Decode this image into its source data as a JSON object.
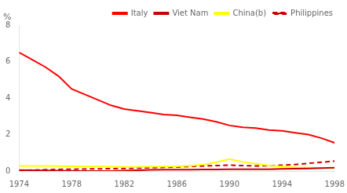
{
  "chart_data": {
    "type": "line",
    "ylabel": "%",
    "x": [
      1974,
      1975,
      1976,
      1977,
      1978,
      1979,
      1980,
      1981,
      1982,
      1983,
      1984,
      1985,
      1986,
      1987,
      1988,
      1989,
      1990,
      1991,
      1992,
      1993,
      1994,
      1995,
      1996,
      1997,
      1998
    ],
    "series": [
      {
        "name": "Italy",
        "color": "#ff0000",
        "line_style": "solid",
        "values": [
          6.5,
          6.1,
          5.7,
          5.2,
          4.5,
          4.2,
          3.9,
          3.6,
          3.4,
          3.3,
          3.2,
          3.1,
          3.05,
          2.95,
          2.85,
          2.7,
          2.5,
          2.4,
          2.35,
          2.25,
          2.2,
          2.1,
          2.0,
          1.8,
          1.55
        ]
      },
      {
        "name": "Viet Nam",
        "color": "#cc0000",
        "line_style": "solid",
        "values": [
          0.05,
          0.04,
          0.03,
          0.02,
          0.01,
          0.0,
          0.0,
          0.0,
          0.02,
          0.04,
          0.06,
          0.07,
          0.08,
          0.08,
          0.09,
          0.09,
          0.1,
          0.1,
          0.1,
          0.1,
          0.12,
          0.13,
          0.14,
          0.16,
          0.18
        ]
      },
      {
        "name": "China(b)",
        "color": "#ffff00",
        "line_style": "solid",
        "values": [
          0.28,
          0.28,
          0.28,
          0.27,
          0.26,
          0.25,
          0.25,
          0.24,
          0.23,
          0.23,
          0.24,
          0.25,
          0.26,
          0.29,
          0.35,
          0.48,
          0.65,
          0.5,
          0.4,
          0.3,
          0.25,
          0.2,
          0.18,
          0.17,
          0.16
        ]
      },
      {
        "name": "Philippines",
        "color": "#cc0000",
        "line_style": "dashed",
        "values": [
          0.03,
          0.05,
          0.07,
          0.09,
          0.1,
          0.11,
          0.12,
          0.13,
          0.14,
          0.16,
          0.18,
          0.2,
          0.22,
          0.25,
          0.28,
          0.3,
          0.32,
          0.3,
          0.28,
          0.29,
          0.32,
          0.36,
          0.42,
          0.48,
          0.55
        ]
      }
    ],
    "xlim": [
      1974,
      1998
    ],
    "xticks": [
      1974,
      1978,
      1982,
      1986,
      1990,
      1994,
      1998
    ],
    "ylim": [
      0,
      8
    ],
    "yticks": [
      0,
      2,
      4,
      6,
      8
    ],
    "grid": false,
    "legend": "upper right"
  }
}
